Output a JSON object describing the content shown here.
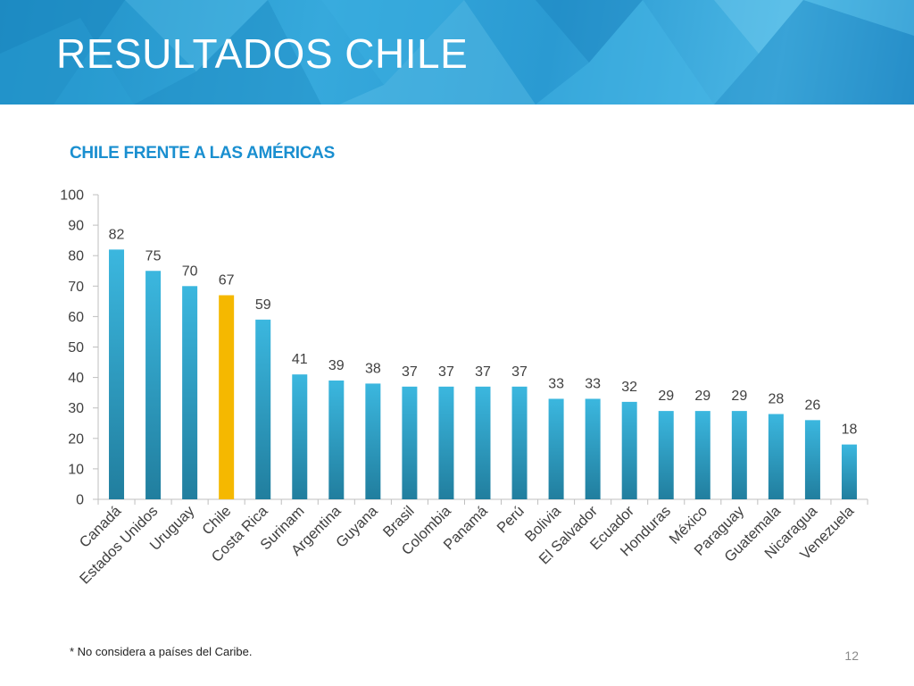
{
  "slide": {
    "title": "RESULTADOS CHILE",
    "subtitle": "CHILE FRENTE A LAS AMÉRICAS",
    "footnote": "* No considera a países del Caribe.",
    "page_number": "12"
  },
  "colors": {
    "bar": "#2ea6cf",
    "highlight": "#f5b800",
    "subtitle": "#1a8fd0",
    "header": "#2a9ad2"
  },
  "chart_data": {
    "type": "bar",
    "categories": [
      "Canadá",
      "Estados Unidos",
      "Uruguay",
      "Chile",
      "Costa Rica",
      "Surinam",
      "Argentina",
      "Guyana",
      "Brasil",
      "Colombia",
      "Panamá",
      "Perú",
      "Bolivia",
      "El Salvador",
      "Ecuador",
      "Honduras",
      "México",
      "Paraguay",
      "Guatemala",
      "Nicaragua",
      "Venezuela"
    ],
    "values": [
      82,
      75,
      70,
      67,
      59,
      41,
      39,
      38,
      37,
      37,
      37,
      37,
      33,
      33,
      32,
      29,
      29,
      29,
      28,
      26,
      18
    ],
    "data_labels": [
      "82",
      "75",
      "70",
      "67",
      "59",
      "41",
      "39",
      "38",
      "37",
      "37",
      "37",
      "37",
      "33",
      "33",
      "32",
      "29",
      "29",
      "29",
      "28",
      "26",
      "18"
    ],
    "highlight_category": "Chile",
    "ylim": [
      0,
      100
    ],
    "yticks": [
      "0",
      "10",
      "20",
      "30",
      "40",
      "50",
      "60",
      "70",
      "80",
      "90",
      "100"
    ],
    "xlabel": "",
    "ylabel": "",
    "grid": false,
    "legend": "none"
  }
}
